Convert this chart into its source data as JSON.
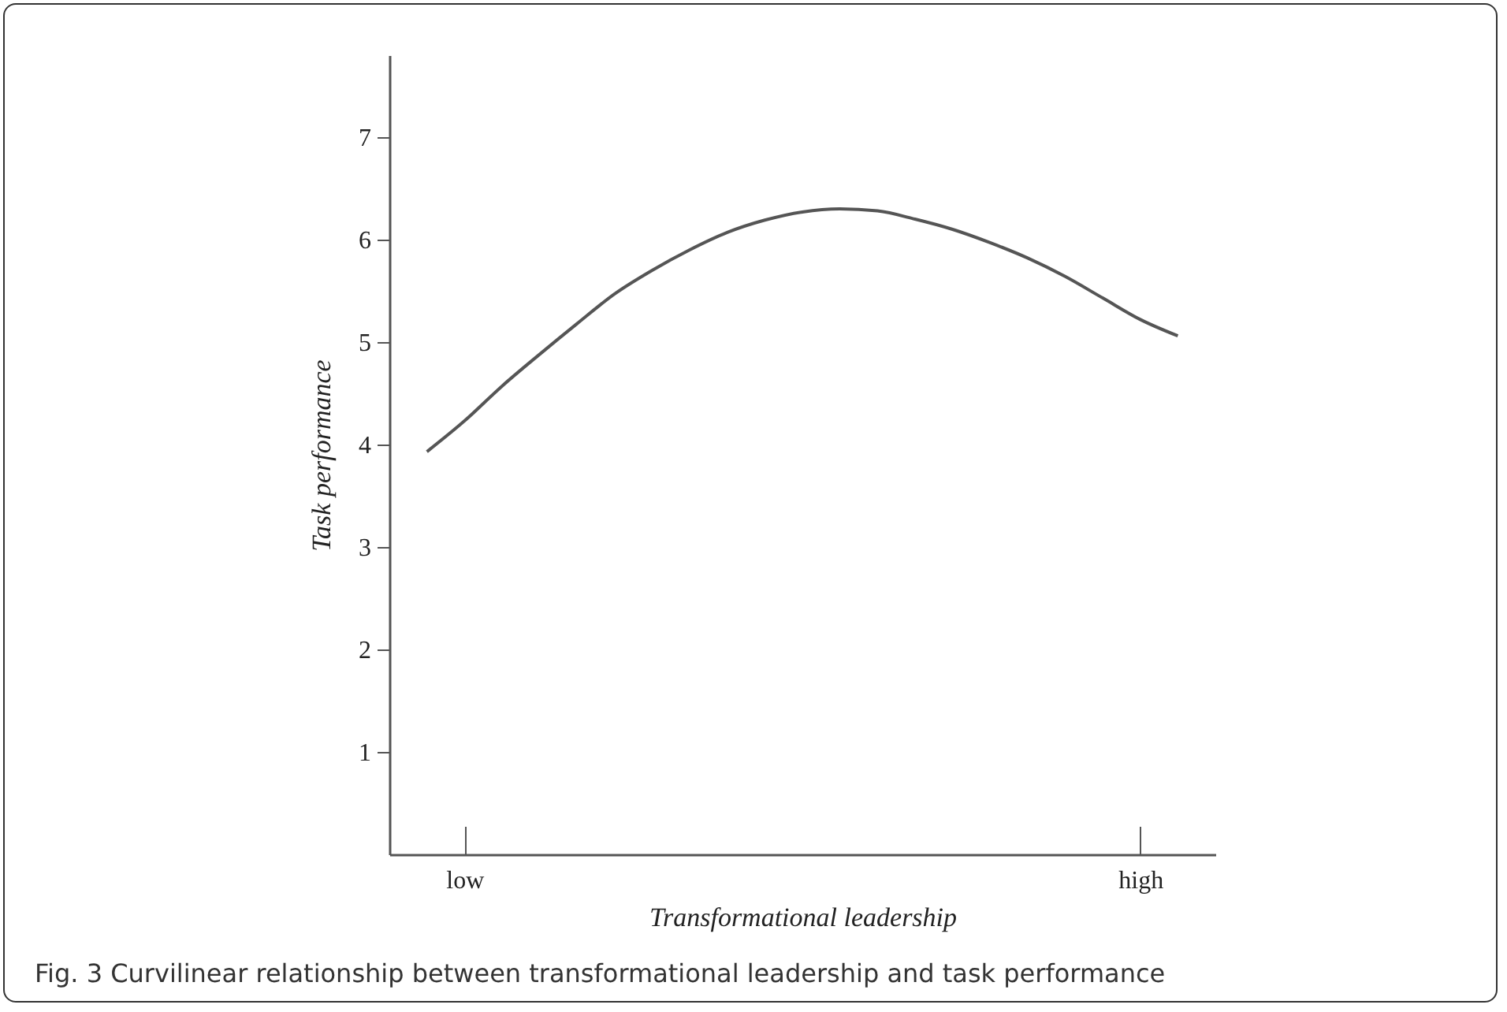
{
  "chart_data": {
    "type": "line",
    "xlabel": "Transformational  leadership",
    "ylabel": "Task performance",
    "annotations": [
      "Fig. 3 Curvilinear relationship between transformational leadership and task performance"
    ],
    "categories": [
      null,
      "low",
      null,
      null,
      null,
      null,
      null,
      null,
      null,
      null,
      null,
      null,
      null,
      null,
      null,
      null,
      null,
      null,
      null,
      "high",
      null
    ],
    "series": [
      {
        "color": "#555555",
        "values": [
          3.93,
          4.23,
          4.57,
          4.88,
          5.18,
          5.47,
          5.7,
          5.9,
          6.07,
          6.19,
          6.27,
          6.3,
          6.28,
          6.2,
          6.1,
          5.97,
          5.82,
          5.64,
          5.43,
          5.22,
          5.06
        ]
      }
    ],
    "ylim": [
      0,
      7.8
    ],
    "yticks": [
      1,
      2,
      3,
      4,
      5,
      6,
      7
    ],
    "line_style": "solid"
  }
}
